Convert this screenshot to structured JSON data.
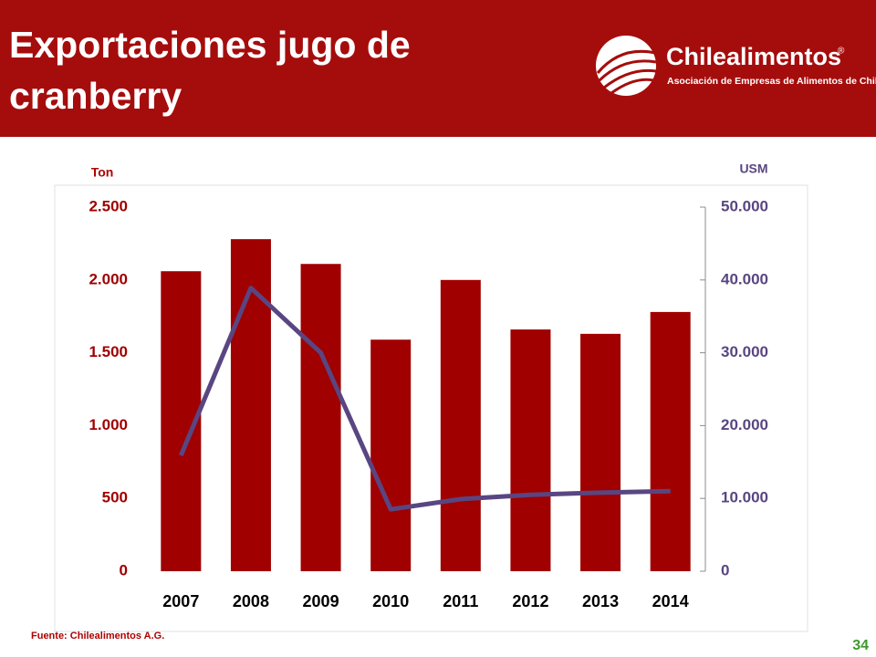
{
  "slide": {
    "title_line1": "Exportaciones jugo de",
    "title_line2": "cranberry",
    "logo_name": "Chilealimentos",
    "logo_mark": "®",
    "logo_tagline": "Asociación de Empresas de Alimentos de Chile",
    "source": "Fuente: Chilealimentos A.G.",
    "page": "34"
  },
  "chart_data": {
    "type": "bar",
    "y_label": "Ton",
    "y2_label": "USM",
    "categories": [
      "2007",
      "2008",
      "2009",
      "2010",
      "2011",
      "2012",
      "2013",
      "2014"
    ],
    "series": [
      {
        "type": "bar",
        "color": "#a00000",
        "values": [
          2060,
          2280,
          2110,
          1590,
          2000,
          1660,
          1630,
          1780
        ]
      },
      {
        "type": "line",
        "axis": "y2",
        "color": "#594681",
        "values": [
          15900,
          38900,
          30000,
          8500,
          9900,
          10500,
          10800,
          11000
        ]
      }
    ],
    "ylim": [
      0,
      2500
    ],
    "yticks": [
      0,
      500,
      {
        "value": 1000,
        "label": "1.000"
      },
      {
        "value": 1500,
        "label": "1.500"
      },
      {
        "value": 2000,
        "label": "2.000"
      },
      {
        "value": 2500,
        "label": "2.500"
      }
    ],
    "y2lim": [
      0,
      50000
    ],
    "y2ticks": [
      0,
      {
        "value": 10000,
        "label": "10.000"
      },
      {
        "value": 20000,
        "label": "20.000"
      },
      {
        "value": 30000,
        "label": "30.000"
      },
      {
        "value": 40000,
        "label": "40.000"
      },
      {
        "value": 50000,
        "label": "50.000"
      }
    ]
  }
}
